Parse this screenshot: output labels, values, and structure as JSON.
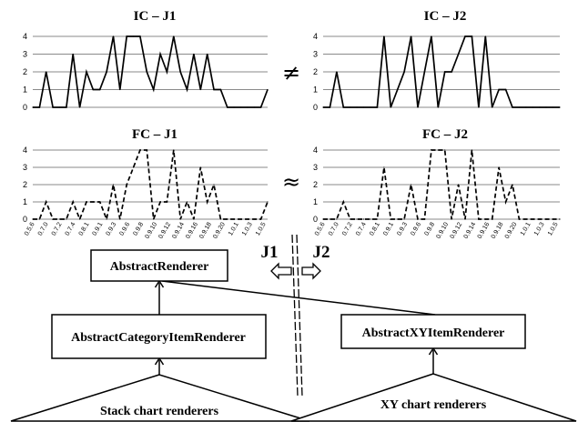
{
  "chart_data": [
    {
      "type": "line",
      "title": "IC – J1",
      "ylim": [
        0,
        4
      ],
      "yticks": [
        "0",
        "1",
        "2",
        "3",
        "4"
      ],
      "line_style": "solid",
      "values": [
        0,
        0,
        2,
        0,
        0,
        0,
        3,
        0,
        2,
        1,
        1,
        2,
        4,
        1,
        4,
        4,
        4,
        2,
        1,
        3,
        2,
        4,
        2,
        1,
        3,
        1,
        3,
        1,
        1,
        0,
        0,
        0,
        0,
        0,
        0,
        1
      ]
    },
    {
      "type": "line",
      "title": "IC – J2",
      "ylim": [
        0,
        4
      ],
      "yticks": [
        "0",
        "1",
        "2",
        "3",
        "4"
      ],
      "line_style": "solid",
      "values": [
        0,
        0,
        2,
        0,
        0,
        0,
        0,
        0,
        0,
        4,
        0,
        1,
        2,
        4,
        0,
        2,
        4,
        0,
        2,
        2,
        3,
        4,
        4,
        0,
        4,
        0,
        1,
        1,
        0,
        0,
        0,
        0,
        0,
        0,
        0,
        0
      ]
    },
    {
      "type": "line",
      "title": "FC – J1",
      "ylim": [
        0,
        4
      ],
      "yticks": [
        "0",
        "1",
        "2",
        "3",
        "4"
      ],
      "line_style": "dashed",
      "values": [
        0,
        0,
        1,
        0,
        0,
        0,
        1,
        0,
        1,
        1,
        1,
        0,
        2,
        0,
        2,
        3,
        4,
        4,
        0,
        1,
        1,
        4,
        0,
        1,
        0,
        3,
        1,
        2,
        0,
        0,
        0,
        0,
        0,
        0,
        0,
        1
      ]
    },
    {
      "type": "line",
      "title": "FC – J2",
      "ylim": [
        0,
        4
      ],
      "yticks": [
        "0",
        "1",
        "2",
        "3",
        "4"
      ],
      "line_style": "dashed",
      "values": [
        0,
        0,
        0,
        1,
        0,
        0,
        0,
        0,
        0,
        3,
        0,
        0,
        0,
        2,
        0,
        0,
        4,
        4,
        4,
        0,
        2,
        0,
        4,
        0,
        0,
        0,
        3,
        1,
        2,
        0,
        0,
        0,
        0,
        0,
        0,
        0
      ]
    }
  ],
  "x_tick_labels": [
    "0.5.6",
    "0.7.0",
    "0.7.2",
    "0.7.4",
    "0.8.1",
    "0.9.1",
    "0.9.3",
    "0.9.6",
    "0.9.8",
    "0.9.10",
    "0.9.12",
    "0.9.14",
    "0.9.16",
    "0.9.18",
    "0.9.20",
    "1.0.1",
    "1.0.3",
    "1.0.5"
  ],
  "x_tick_labels_right": [
    "0.5.6",
    "0.7.0",
    "0.7.2",
    "0.7.4",
    "0.8.1",
    "0.9.1",
    "0.9.3",
    "0.9.6",
    "0.9.8",
    "0.9.10",
    "0.9.12",
    "0.9.14",
    "0.9.16",
    "0.9.18",
    "0.9.20",
    "1.0.1",
    "1.0.3",
    "1.0.5"
  ],
  "relations": {
    "ic": "≠",
    "fc": "≈"
  },
  "diagram": {
    "abstract_renderer": "AbstractRenderer",
    "category_renderer": "AbstractCategoryItemRenderer",
    "xy_renderer": "AbstractXYItemRenderer",
    "stack_group": "Stack chart renderers",
    "xy_group": "XY chart renderers",
    "j1": "J1",
    "j2": "J2"
  }
}
